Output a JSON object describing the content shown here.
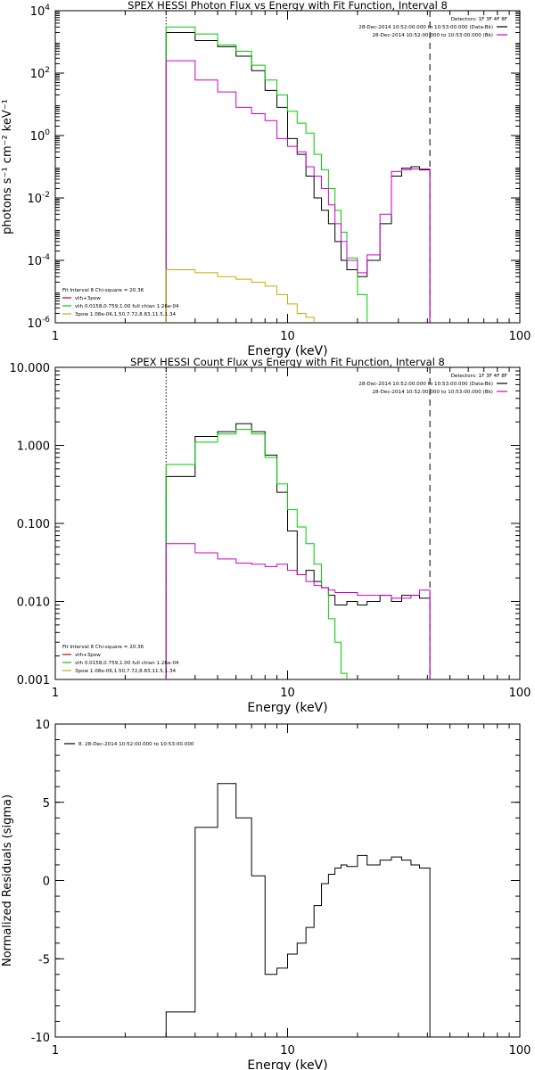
{
  "chart_data": [
    {
      "type": "line",
      "title": "SPEX HESSI Photon Flux vs Energy with Fit Function, Interval 8",
      "xlabel": "Energy (keV)",
      "ylabel": "photons s⁻¹ cm⁻² keV⁻¹",
      "xscale": "log",
      "yscale": "log",
      "xlim": [
        1,
        100
      ],
      "ylim": [
        1e-06,
        10000
      ],
      "xticks": [
        {
          "v": 1,
          "label": "1"
        },
        {
          "v": 10,
          "label": "10"
        },
        {
          "v": 100,
          "label": "100"
        }
      ],
      "yticks": [
        {
          "v": 1e-06,
          "base": "10",
          "exp": "-6"
        },
        {
          "v": 0.0001,
          "base": "10",
          "exp": "-4"
        },
        {
          "v": 0.01,
          "base": "10",
          "exp": "-2"
        },
        {
          "v": 1,
          "base": "10",
          "exp": "0"
        },
        {
          "v": 100,
          "base": "10",
          "exp": "2"
        },
        {
          "v": 10000,
          "base": "10",
          "exp": "4"
        }
      ],
      "edges": [
        3,
        4,
        5,
        6,
        7,
        8,
        9,
        10,
        11,
        12,
        13,
        14,
        15,
        16,
        17,
        18,
        20,
        22,
        25,
        28,
        31,
        34,
        37,
        41
      ],
      "vlines": [
        {
          "x": 3,
          "style": "dotted"
        },
        {
          "x": 41,
          "style": "dashed"
        }
      ],
      "legend_top": [
        {
          "text": "Detectors: 1F 3F 4F 8F",
          "color": "",
          "line": false
        },
        {
          "text": "28-Dec-2014 10:52:00.000 to 10:53:00.000 (Data-Bk)",
          "color": "#000000",
          "line": true
        },
        {
          "text": "28-Dec-2014 10:52:00.000 to 10:53:00.000 (Bk)",
          "color": "#cc00cc",
          "line": true
        }
      ],
      "legend_bottom": [
        {
          "text": "Fit Interval 8   Chi-square = 20.36",
          "color": "",
          "line": false
        },
        {
          "text": "vth+3pow",
          "color": "#cc0000",
          "line": true
        },
        {
          "text": "vth 0.0158,0.759,1.00  full chian 1.26e-04",
          "color": "#00cc00",
          "line": true
        },
        {
          "text": "3pow 1.08e-06,1.50,7.72,8.83,11.5,1.34",
          "color": "#ccaa00",
          "line": true
        }
      ],
      "series": [
        {
          "color": "#000000",
          "values": [
            2000,
            1100,
            700,
            350,
            120,
            28,
            8,
            0.8,
            0.25,
            0.05,
            0.01,
            0.004,
            0.0015,
            0.0004,
            0.0001,
            5e-05,
            3e-05,
            0.0001,
            0.0015,
            0.05,
            0.09,
            0.1,
            0.08
          ]
        },
        {
          "color": "#00cc00",
          "values": [
            3000,
            1800,
            800,
            500,
            180,
            60,
            20,
            6,
            2.5,
            1.2,
            0.25,
            0.08,
            0.02,
            0.004,
            0.0008,
            0.00012,
            8e-06,
            0,
            0,
            0,
            0,
            0,
            0
          ]
        },
        {
          "color": "#cc00cc",
          "values": [
            250,
            60,
            25,
            8,
            5,
            3,
            0.8,
            0.45,
            0.3,
            0.1,
            0.05,
            0.02,
            0.006,
            0.0015,
            0.0004,
            0.0001,
            4e-05,
            0.00015,
            0.003,
            0.07,
            0.08,
            0.085,
            0.085
          ]
        },
        {
          "color": "#ccaa00",
          "values": [
            5e-05,
            4e-05,
            3e-05,
            2.5e-05,
            2e-05,
            1.5e-05,
            8e-06,
            4e-06,
            2e-06,
            1.5e-06,
            1e-06,
            0,
            0,
            0,
            0,
            0,
            0,
            0,
            0,
            0,
            0,
            0,
            0
          ]
        }
      ]
    },
    {
      "type": "line",
      "title": "SPEX HESSI Count Flux vs Energy with Fit Function, Interval 8",
      "xlabel": "Energy (keV)",
      "ylabel": "",
      "xscale": "log",
      "yscale": "log",
      "xlim": [
        1,
        100
      ],
      "ylim": [
        0.001,
        10
      ],
      "xticks": [
        {
          "v": 1,
          "label": "1"
        },
        {
          "v": 10,
          "label": "10"
        },
        {
          "v": 100,
          "label": "100"
        }
      ],
      "yticks": [
        {
          "v": 0.001,
          "label": "0.001"
        },
        {
          "v": 0.01,
          "label": "0.010"
        },
        {
          "v": 0.1,
          "label": "0.100"
        },
        {
          "v": 1,
          "label": "1.000"
        },
        {
          "v": 10,
          "label": "10.000"
        }
      ],
      "edges": [
        3,
        4,
        5,
        6,
        7,
        8,
        9,
        10,
        11,
        12,
        13,
        14,
        15,
        16,
        17,
        18,
        20,
        22,
        25,
        28,
        31,
        34,
        37,
        41
      ],
      "vlines": [
        {
          "x": 3,
          "style": "dotted"
        },
        {
          "x": 41,
          "style": "dashed"
        }
      ],
      "legend_top": [
        {
          "text": "Detectors: 1F 3F 4F 8F",
          "color": "",
          "line": false
        },
        {
          "text": "28-Dec-2014 10:52:00.000 to 10:53:00.000 (Data-Bk)",
          "color": "#000000",
          "line": true
        },
        {
          "text": "28-Dec-2014 10:52:00.000 to 10:53:00.000 (Bk)",
          "color": "#cc00cc",
          "line": true
        }
      ],
      "legend_bottom": [
        {
          "text": "Fit Interval 8   Chi-square = 20.36",
          "color": "",
          "line": false
        },
        {
          "text": "vth+3pow",
          "color": "#cc0000",
          "line": true
        },
        {
          "text": "vth 0.0158,0.759,1.00  full chian 1.26e-04",
          "color": "#00cc00",
          "line": true
        },
        {
          "text": "3pow 1.08e-06,1.50,7.72,8.83,11.5,1.34",
          "color": "#ccaa00",
          "line": true
        }
      ],
      "series": [
        {
          "color": "#000000",
          "values": [
            0.4,
            1.3,
            1.5,
            1.9,
            1.5,
            0.75,
            0.25,
            0.08,
            0.022,
            0.025,
            0.018,
            0.015,
            0.012,
            0.009,
            0.009,
            0.01,
            0.009,
            0.01,
            0.012,
            0.01,
            0.012,
            0.012,
            0.011
          ]
        },
        {
          "color": "#00cc00",
          "values": [
            0.57,
            1.1,
            1.4,
            1.6,
            1.4,
            0.7,
            0.32,
            0.15,
            0.09,
            0.055,
            0.03,
            0.015,
            0.006,
            0.003,
            0.0012,
            0.0004,
            0,
            0,
            0,
            0,
            0,
            0,
            0
          ]
        },
        {
          "color": "#cc00cc",
          "values": [
            0.055,
            0.042,
            0.035,
            0.031,
            0.03,
            0.028,
            0.03,
            0.025,
            0.022,
            0.018,
            0.016,
            0.015,
            0.014,
            0.013,
            0.013,
            0.013,
            0.012,
            0.012,
            0.012,
            0.011,
            0.011,
            0.012,
            0.014
          ]
        }
      ]
    },
    {
      "type": "line",
      "title": "",
      "xlabel": "Energy (keV)",
      "ylabel": "Normalized Residuals (sigma)",
      "xscale": "log",
      "yscale": "linear",
      "xlim": [
        1,
        100
      ],
      "ylim": [
        -10,
        10
      ],
      "xticks": [
        {
          "v": 1,
          "label": "1"
        },
        {
          "v": 10,
          "label": "10"
        },
        {
          "v": 100,
          "label": "100"
        }
      ],
      "yticks": [
        {
          "v": -10,
          "label": "-10"
        },
        {
          "v": -5,
          "label": "-5"
        },
        {
          "v": 0,
          "label": "0"
        },
        {
          "v": 5,
          "label": "5"
        },
        {
          "v": 10,
          "label": "10"
        }
      ],
      "edges": [
        3,
        4,
        5,
        6,
        7,
        8,
        9,
        10,
        11,
        12,
        13,
        14,
        15,
        16,
        17,
        18,
        20,
        22,
        25,
        28,
        31,
        34,
        37,
        41
      ],
      "vlines": [],
      "legend_top": [
        {
          "text": "8. 28-Dec-2014 10:52:00.000 to 10:53:00.000",
          "color": "#000000",
          "line": true
        }
      ],
      "legend_bottom": [],
      "series": [
        {
          "color": "#000000",
          "values": [
            -8.4,
            3.4,
            6.2,
            4.0,
            0.3,
            -6.0,
            -5.6,
            -4.7,
            -4.0,
            -3.0,
            -1.6,
            -0.2,
            0.4,
            0.8,
            1.0,
            0.9,
            1.6,
            1.0,
            1.3,
            1.5,
            1.3,
            1.0,
            0.8
          ]
        }
      ]
    }
  ]
}
